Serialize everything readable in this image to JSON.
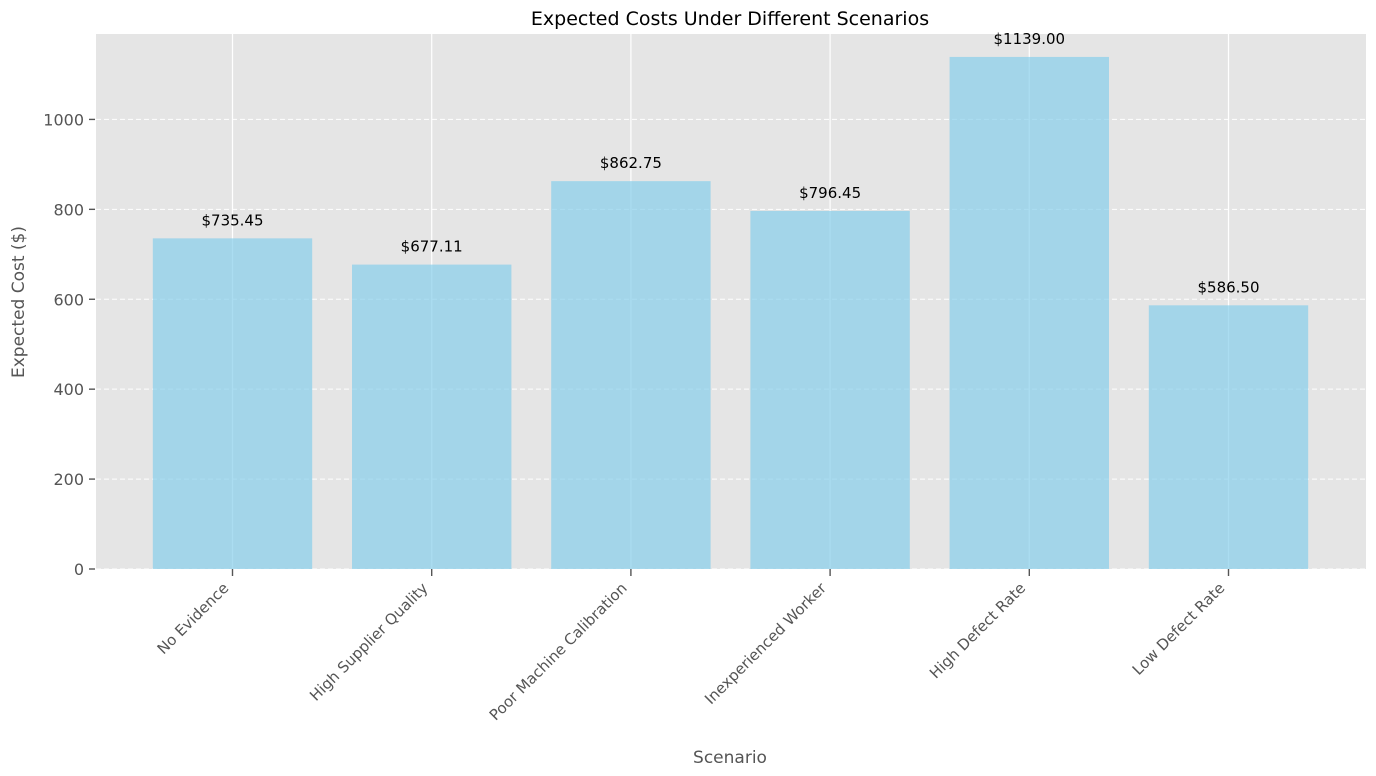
{
  "chart_data": {
    "type": "bar",
    "title": "Expected Costs Under Different Scenarios",
    "xlabel": "Scenario",
    "ylabel": "Expected Cost ($)",
    "categories": [
      "No Evidence",
      "High Supplier Quality",
      "Poor Machine Calibration",
      "Inexperienced Worker",
      "High Defect Rate",
      "Low Defect Rate"
    ],
    "values": [
      735.45,
      677.11,
      862.75,
      796.45,
      1139.0,
      586.5
    ],
    "data_labels": [
      "$735.45",
      "$677.11",
      "$862.75",
      "$796.45",
      "$1139.00",
      "$586.50"
    ],
    "ylim": [
      0,
      1190
    ],
    "yticks": [
      0,
      200,
      400,
      600,
      800,
      1000
    ],
    "grid": true,
    "colors": {
      "bar": "#87ceeb",
      "plot_background": "#e5e5e5",
      "grid": "#ffffff"
    }
  }
}
